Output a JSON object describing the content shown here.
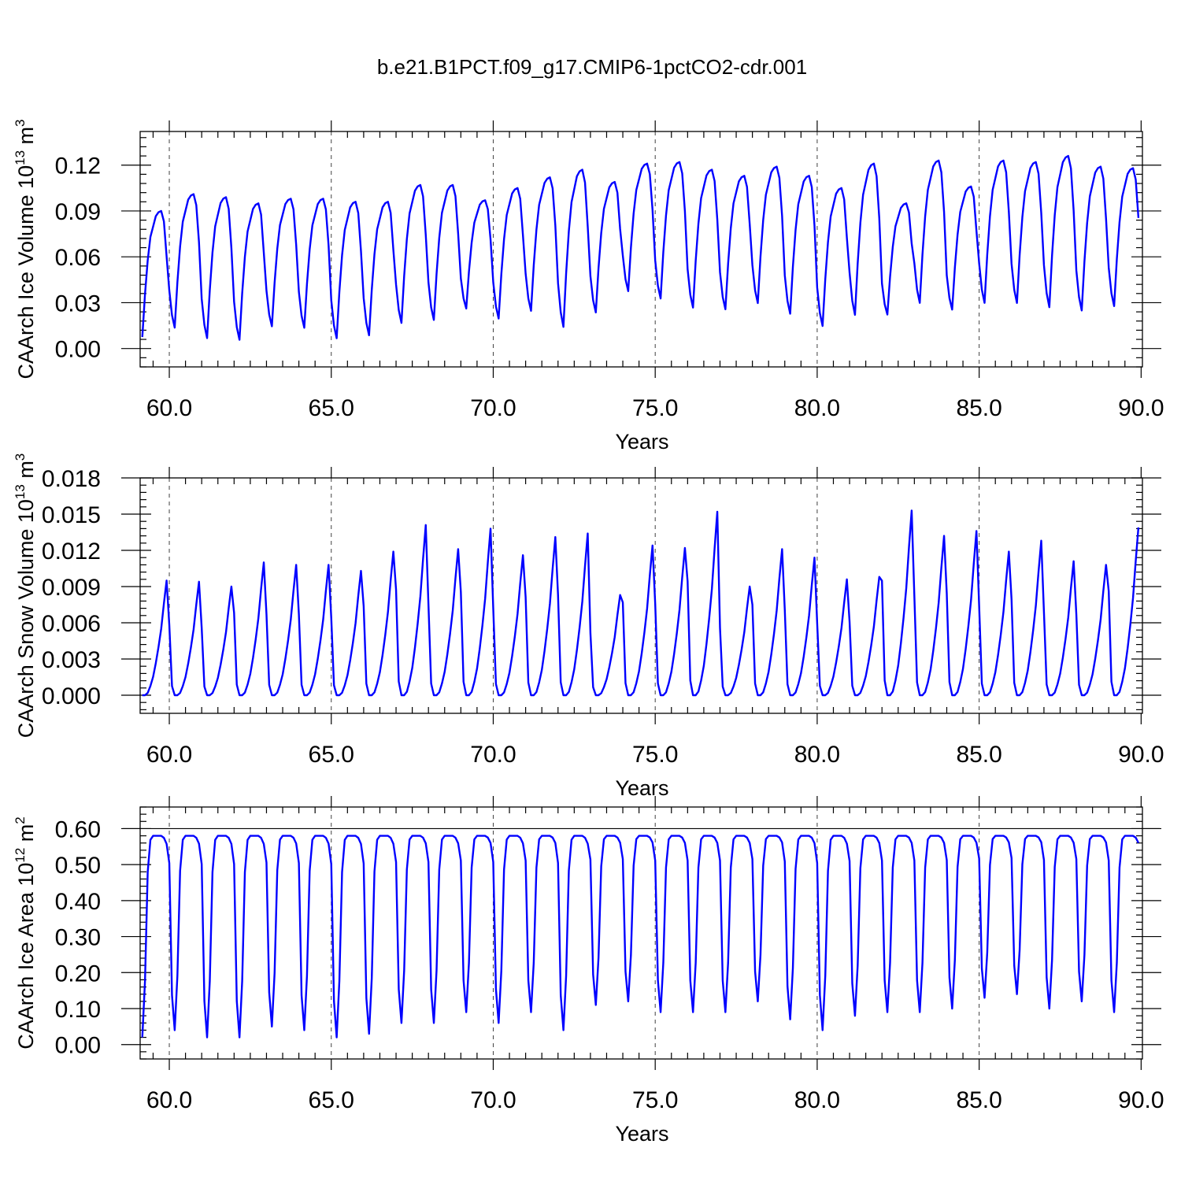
{
  "title": "b.e21.B1PCT.f09_g17.CMIP6-1pctCO2-cdr.001",
  "colors": {
    "series": "#0000ff",
    "axes": "#000000"
  },
  "chart_data": [
    {
      "type": "line",
      "xlabel": "Years",
      "ylabel": {
        "prefix": "CAArch Ice Volume 10",
        "exp": "13",
        "mid": " m",
        "unit_exp": "3"
      },
      "xlim": [
        59.1,
        90.04
      ],
      "ylim": [
        -0.012,
        0.142
      ],
      "xticks": [
        60,
        65,
        70,
        75,
        80,
        85,
        90
      ],
      "xtick_labels": [
        "60.0",
        "65.0",
        "70.0",
        "75.0",
        "80.0",
        "85.0",
        "90.0"
      ],
      "yticks": [
        0,
        0.03,
        0.06,
        0.09,
        0.12
      ],
      "ytick_labels": [
        "0.00",
        "0.03",
        "0.06",
        "0.09",
        "0.12"
      ],
      "grid": "dashed at major x ticks",
      "shape": [
        0.3,
        0.12,
        0.03,
        0.36,
        0.62,
        0.8,
        0.88,
        0.96,
        0.99,
        1.0,
        0.92,
        0.65
      ],
      "x": [
        59.5,
        60.5,
        61.5,
        62.5,
        63.5,
        64.5,
        65.5,
        66.5,
        67.5,
        68.5,
        69.5,
        70.5,
        71.5,
        72.5,
        73.5,
        74.5,
        75.5,
        76.5,
        77.5,
        78.5,
        79.5,
        80.5,
        81.5,
        82.5,
        83.5,
        84.5,
        85.5,
        86.5,
        87.5,
        88.5,
        89.5
      ],
      "series": [
        {
          "min": [
            0.005,
            0.011,
            0.004,
            0.003,
            0.012,
            0.011,
            0.004,
            0.006,
            0.014,
            0.016,
            0.024,
            0.017,
            0.022,
            0.011,
            0.021,
            0.035,
            0.03,
            0.024,
            0.023,
            0.027,
            0.02,
            0.012,
            0.019,
            0.02,
            0.027,
            0.023,
            0.027,
            0.027,
            0.024,
            0.022,
            0.025
          ],
          "max": [
            0.09,
            0.101,
            0.099,
            0.095,
            0.098,
            0.098,
            0.096,
            0.096,
            0.107,
            0.107,
            0.097,
            0.105,
            0.112,
            0.117,
            0.109,
            0.121,
            0.122,
            0.117,
            0.113,
            0.119,
            0.113,
            0.105,
            0.121,
            0.095,
            0.123,
            0.106,
            0.123,
            0.122,
            0.126,
            0.119,
            0.118
          ]
        }
      ]
    },
    {
      "type": "line",
      "xlabel": "Years",
      "ylabel": {
        "prefix": "CAArch Snow Volume 10",
        "exp": "13",
        "mid": " m",
        "unit_exp": "3"
      },
      "xlim": [
        59.1,
        90.04
      ],
      "ylim": [
        -0.0015,
        0.018
      ],
      "xticks": [
        60,
        65,
        70,
        75,
        80,
        85,
        90
      ],
      "xtick_labels": [
        "60.0",
        "65.0",
        "70.0",
        "75.0",
        "80.0",
        "85.0",
        "90.0"
      ],
      "yticks": [
        0,
        0.003,
        0.006,
        0.009,
        0.012,
        0.015,
        0.018
      ],
      "ytick_labels": [
        "0.000",
        "0.003",
        "0.006",
        "0.009",
        "0.012",
        "0.015",
        "0.018"
      ],
      "grid": "dashed at major x ticks",
      "shape": [
        0.62,
        0.08,
        0.0,
        0.0,
        0.02,
        0.08,
        0.16,
        0.28,
        0.42,
        0.58,
        0.8,
        1.0
      ],
      "x": [
        59.5,
        60.5,
        61.5,
        62.5,
        63.5,
        64.5,
        65.5,
        66.5,
        67.5,
        68.5,
        69.5,
        70.5,
        71.5,
        72.5,
        73.5,
        74.5,
        75.5,
        76.5,
        77.5,
        78.5,
        79.5,
        80.5,
        81.5,
        82.5,
        83.5,
        84.5,
        85.5,
        86.5,
        87.5,
        88.5,
        89.5
      ],
      "series": [
        {
          "min": [
            0,
            0,
            0,
            0,
            0,
            0,
            0,
            0,
            0,
            0,
            0,
            0,
            0,
            0,
            0,
            0,
            0,
            0,
            0,
            0,
            0,
            0,
            0,
            0,
            0,
            0,
            0,
            0,
            0,
            0,
            0
          ],
          "max": [
            0.0095,
            0.0094,
            0.009,
            0.011,
            0.0108,
            0.0108,
            0.0103,
            0.0119,
            0.0141,
            0.0121,
            0.0138,
            0.0116,
            0.0131,
            0.0134,
            0.0083,
            0.0124,
            0.0122,
            0.0152,
            0.009,
            0.0121,
            0.0114,
            0.0096,
            0.0098,
            0.0153,
            0.0132,
            0.0136,
            0.0119,
            0.0128,
            0.0111,
            0.0108,
            0.0139
          ]
        }
      ]
    },
    {
      "type": "line",
      "xlabel": "Years",
      "ylabel": {
        "prefix": "CAArch Ice Area 10",
        "exp": "12",
        "mid": " m",
        "unit_exp": "2"
      },
      "xlim": [
        59.1,
        90.04
      ],
      "ylim": [
        -0.04,
        0.66
      ],
      "xticks": [
        60,
        65,
        70,
        75,
        80,
        85,
        90
      ],
      "xtick_labels": [
        "60.0",
        "65.0",
        "70.0",
        "75.0",
        "80.0",
        "85.0",
        "90.0"
      ],
      "yticks": [
        0,
        0.1,
        0.2,
        0.3,
        0.4,
        0.5,
        0.6
      ],
      "ytick_labels": [
        "0.00",
        "0.10",
        "0.20",
        "0.30",
        "0.40",
        "0.50",
        "0.60"
      ],
      "grid": "dashed at major x ticks",
      "reference_line": 0.6,
      "shape": [
        0.86,
        0.18,
        0.0,
        0.28,
        0.82,
        0.98,
        1.0,
        1.0,
        1.0,
        1.0,
        0.99,
        0.96
      ],
      "x": [
        59.5,
        60.5,
        61.5,
        62.5,
        63.5,
        64.5,
        65.5,
        66.5,
        67.5,
        68.5,
        69.5,
        70.5,
        71.5,
        72.5,
        73.5,
        74.5,
        75.5,
        76.5,
        77.5,
        78.5,
        79.5,
        80.5,
        81.5,
        82.5,
        83.5,
        84.5,
        85.5,
        86.5,
        87.5,
        88.5,
        89.5
      ],
      "series": [
        {
          "min": [
            0.02,
            0.04,
            0.02,
            0.02,
            0.05,
            0.04,
            0.02,
            0.03,
            0.06,
            0.06,
            0.09,
            0.06,
            0.09,
            0.04,
            0.11,
            0.12,
            0.09,
            0.09,
            0.09,
            0.12,
            0.07,
            0.04,
            0.08,
            0.09,
            0.09,
            0.1,
            0.13,
            0.14,
            0.1,
            0.12,
            0.09
          ],
          "max": [
            0.58,
            0.58,
            0.58,
            0.58,
            0.58,
            0.58,
            0.58,
            0.58,
            0.58,
            0.58,
            0.58,
            0.58,
            0.58,
            0.58,
            0.58,
            0.58,
            0.58,
            0.58,
            0.58,
            0.58,
            0.58,
            0.58,
            0.58,
            0.58,
            0.58,
            0.58,
            0.58,
            0.58,
            0.58,
            0.58,
            0.58
          ]
        }
      ]
    }
  ]
}
